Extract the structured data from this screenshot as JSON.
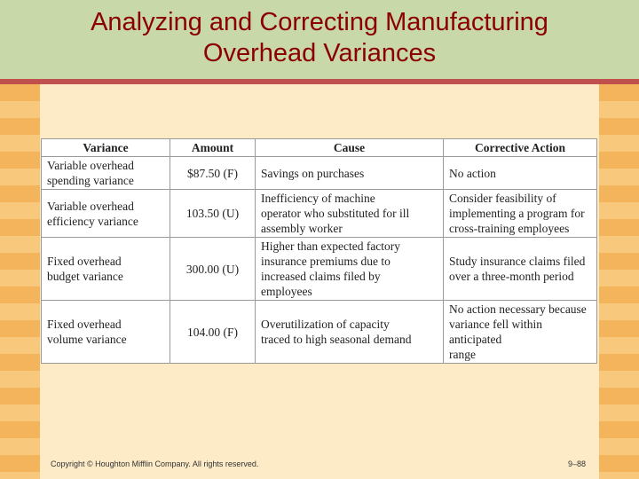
{
  "slide": {
    "title_line1": "Analyzing and Correcting Manufacturing",
    "title_line2": "Overhead Variances"
  },
  "table": {
    "headers": [
      "Variance",
      "Amount",
      "Cause",
      "Corrective Action"
    ],
    "rows": [
      {
        "variance": "Variable overhead\nspending variance",
        "amount": "$87.50 (F)",
        "cause": "Savings on purchases",
        "action": "No action"
      },
      {
        "variance": "Variable overhead\nefficiency variance",
        "amount": "103.50 (U)",
        "cause": "Inefficiency of machine\noperator who substituted for ill\nassembly worker",
        "action": "Consider feasibility of\nimplementing a program for\ncross-training employees"
      },
      {
        "variance": "Fixed overhead\nbudget variance",
        "amount": "300.00 (U)",
        "cause": "Higher than expected factory\ninsurance premiums due to\nincreased claims filed by\nemployees",
        "action": "Study insurance claims filed\nover a three-month period"
      },
      {
        "variance": "Fixed overhead\nvolume variance",
        "amount": "104.00 (F)",
        "cause": "Overutilization of capacity\ntraced to high seasonal demand",
        "action": "No action necessary because\nvariance fell within anticipated\nrange"
      }
    ]
  },
  "footer": {
    "copyright": "Copyright © Houghton Mifflin Company. All rights reserved.",
    "page": "9–88"
  },
  "colors": {
    "title": "#8b0000",
    "title_bar": "#c8d8a8",
    "rule": "#c0504d",
    "background": "#fdebc8",
    "stripe": "#f4b45c"
  }
}
